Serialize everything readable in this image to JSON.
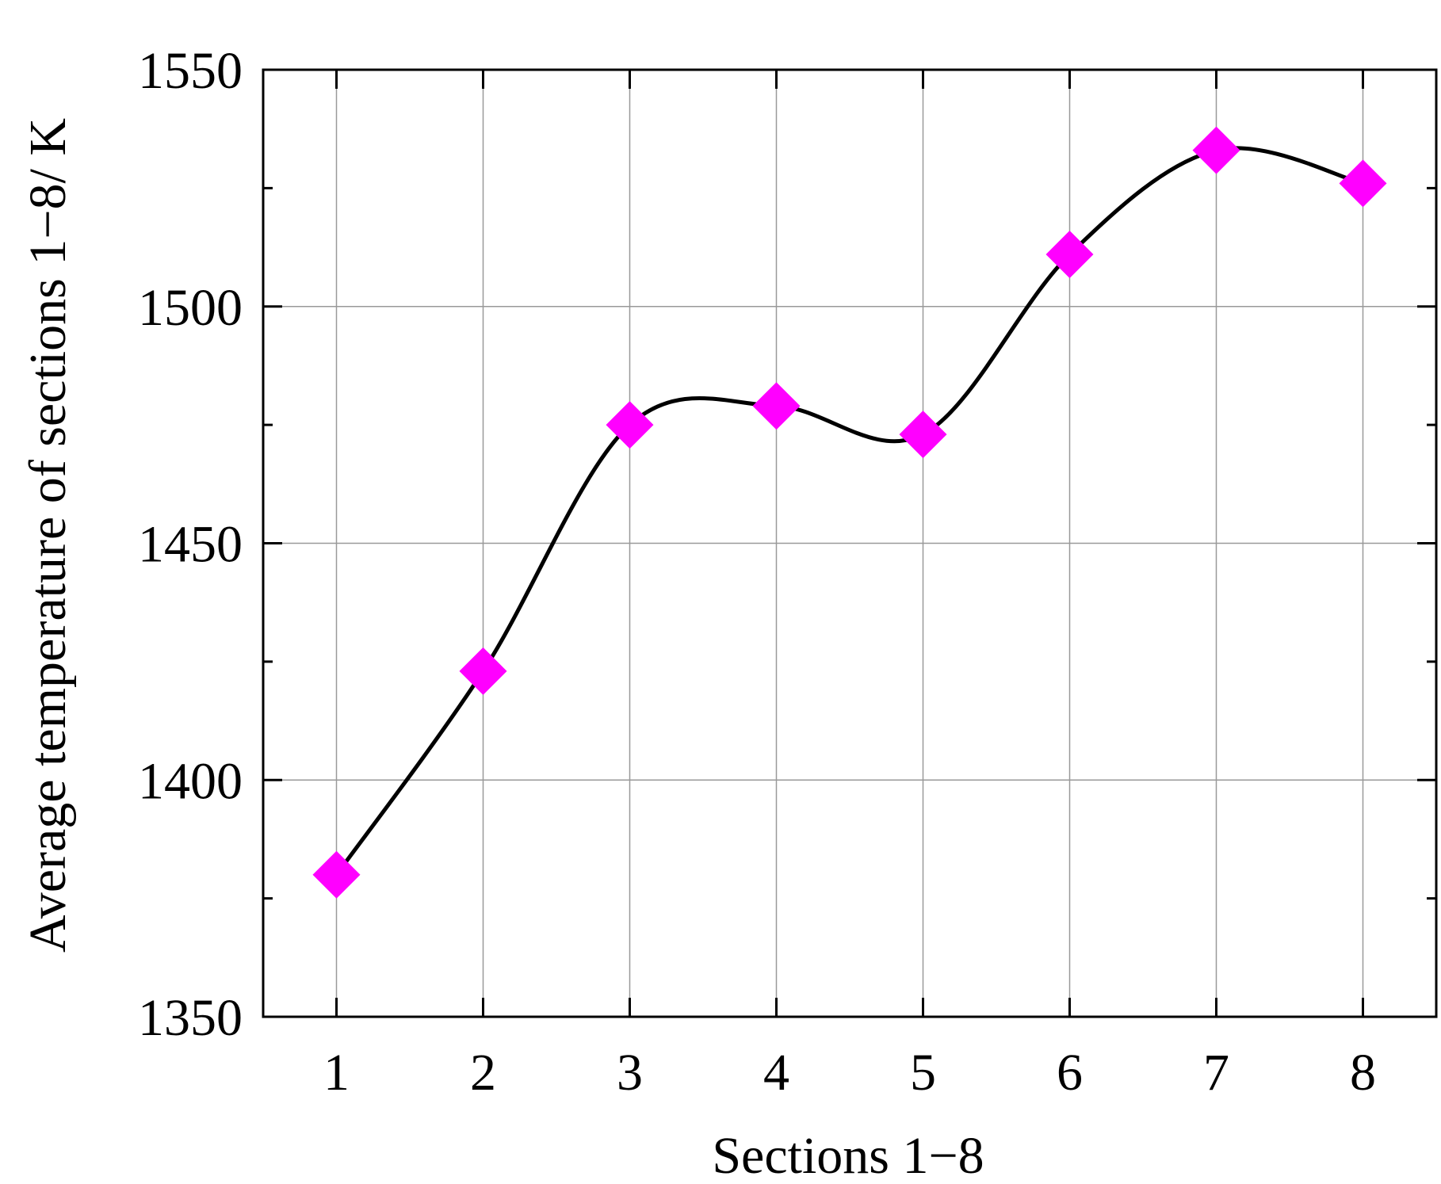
{
  "chart_data": {
    "type": "line",
    "title": "",
    "xlabel": "Sections 1−8",
    "ylabel": "Average temperature of sections 1−8/ K",
    "x": [
      1,
      2,
      3,
      4,
      5,
      6,
      7,
      8
    ],
    "x_tick_labels": [
      "1",
      "2",
      "3",
      "4",
      "5",
      "6",
      "7",
      "8"
    ],
    "y_ticks": [
      1350,
      1400,
      1450,
      1500,
      1550
    ],
    "y_tick_labels": [
      "1350",
      "1400",
      "1450",
      "1500",
      "1550"
    ],
    "ylim": [
      1350,
      1550
    ],
    "xlim": [
      0.5,
      8.5
    ],
    "grid": true,
    "series": [
      {
        "values": [
          1380,
          1423,
          1475,
          1479,
          1473,
          1511,
          1533,
          1526
        ],
        "line_color": "#000000",
        "marker": "diamond",
        "marker_color": "#ff00ff",
        "smooth": true
      }
    ]
  }
}
